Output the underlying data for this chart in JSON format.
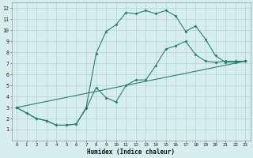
{
  "xlabel": "Humidex (Indice chaleur)",
  "bg_color": "#d7eeee",
  "grid_color": "#b8d8d8",
  "line_color": "#2e7d72",
  "line1_x": [
    0,
    1,
    2,
    3,
    4,
    5,
    6,
    7,
    8,
    9,
    10,
    11,
    12,
    13,
    14,
    15,
    16,
    17,
    18,
    19,
    20,
    21,
    22,
    23
  ],
  "line1_y": [
    3.0,
    2.5,
    2.0,
    1.8,
    1.4,
    1.4,
    1.5,
    3.0,
    7.9,
    9.9,
    10.5,
    11.6,
    11.5,
    11.8,
    11.5,
    11.8,
    11.3,
    9.9,
    10.4,
    9.2,
    7.7,
    7.1,
    7.1,
    7.2
  ],
  "line2_x": [
    0,
    1,
    2,
    3,
    4,
    5,
    6,
    7,
    8,
    9,
    10,
    11,
    12,
    13,
    14,
    15,
    16,
    17,
    18,
    19,
    20,
    21,
    22,
    23
  ],
  "line2_y": [
    3.0,
    2.5,
    2.0,
    1.8,
    1.4,
    1.4,
    1.5,
    2.9,
    4.8,
    3.9,
    3.5,
    5.0,
    5.5,
    5.5,
    6.8,
    8.3,
    8.6,
    9.0,
    7.8,
    7.2,
    7.1,
    7.2,
    7.2,
    7.2
  ],
  "line3_x": [
    0,
    23
  ],
  "line3_y": [
    3.0,
    7.2
  ],
  "xlim": [
    -0.5,
    23.5
  ],
  "ylim": [
    0,
    12.5
  ],
  "xticks": [
    0,
    1,
    2,
    3,
    4,
    5,
    6,
    7,
    8,
    9,
    10,
    11,
    12,
    13,
    14,
    15,
    16,
    17,
    18,
    19,
    20,
    21,
    22,
    23
  ],
  "yticks": [
    1,
    2,
    3,
    4,
    5,
    6,
    7,
    8,
    9,
    10,
    11,
    12
  ]
}
